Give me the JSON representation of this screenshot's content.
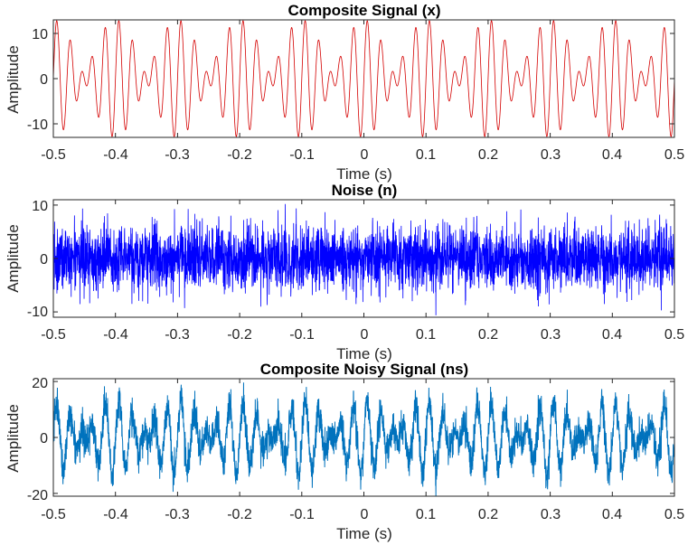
{
  "chart_data": [
    {
      "type": "line",
      "title": "Composite Signal (x)",
      "xlabel": "Time (s)",
      "ylabel": "Amplitude",
      "xlim": [
        -0.5,
        0.5
      ],
      "ylim": [
        -13,
        13
      ],
      "xticks": [
        -0.5,
        -0.4,
        -0.3,
        -0.2,
        -0.1,
        0,
        0.1,
        0.2,
        0.3,
        0.4,
        0.5
      ],
      "xtick_labels": [
        "-0.5",
        "-0.4",
        "-0.3",
        "-0.2",
        "-0.1",
        "0",
        "0.1",
        "0.2",
        "0.3",
        "0.4",
        "0.5"
      ],
      "yticks": [
        -10,
        0,
        10
      ],
      "ytick_labels": [
        "-10",
        "0",
        "10"
      ],
      "grid": false,
      "color": "#d40000",
      "series_model": {
        "kind": "sum_of_sines",
        "components": [
          {
            "amplitude": 7,
            "frequency_hz": 50
          },
          {
            "amplitude": 6,
            "frequency_hz": 40
          }
        ]
      }
    },
    {
      "type": "line",
      "title": "Noise (n)",
      "xlabel": "Time (s)",
      "ylabel": "Amplitude",
      "xlim": [
        -0.5,
        0.5
      ],
      "ylim": [
        -11,
        11
      ],
      "xticks": [
        -0.5,
        -0.4,
        -0.3,
        -0.2,
        -0.1,
        0,
        0.1,
        0.2,
        0.3,
        0.4,
        0.5
      ],
      "xtick_labels": [
        "-0.5",
        "-0.4",
        "-0.3",
        "-0.2",
        "-0.1",
        "0",
        "0.1",
        "0.2",
        "0.3",
        "0.4",
        "0.5"
      ],
      "yticks": [
        -10,
        0,
        10
      ],
      "ytick_labels": [
        "-10",
        "0",
        "10"
      ],
      "grid": false,
      "color": "#0000ff",
      "series_model": {
        "kind": "gaussian_noise",
        "std": 3,
        "seed": 7
      }
    },
    {
      "type": "line",
      "title": "Composite Noisy Signal (ns)",
      "xlabel": "Time (s)",
      "ylabel": "Amplitude",
      "xlim": [
        -0.5,
        0.5
      ],
      "ylim": [
        -21,
        21
      ],
      "xticks": [
        -0.5,
        -0.4,
        -0.3,
        -0.2,
        -0.1,
        0,
        0.1,
        0.2,
        0.3,
        0.4,
        0.5
      ],
      "xtick_labels": [
        "-0.5",
        "-0.4",
        "-0.3",
        "-0.2",
        "-0.1",
        "0",
        "0.1",
        "0.2",
        "0.3",
        "0.4",
        "0.5"
      ],
      "yticks": [
        -20,
        0,
        20
      ],
      "ytick_labels": [
        "-20",
        "0",
        "20"
      ],
      "grid": false,
      "color": "#0072bd",
      "series_model": {
        "kind": "signal_plus_noise",
        "components": [
          {
            "amplitude": 7,
            "frequency_hz": 50
          },
          {
            "amplitude": 6,
            "frequency_hz": 40
          }
        ],
        "noise_std": 3,
        "seed": 7
      }
    }
  ]
}
